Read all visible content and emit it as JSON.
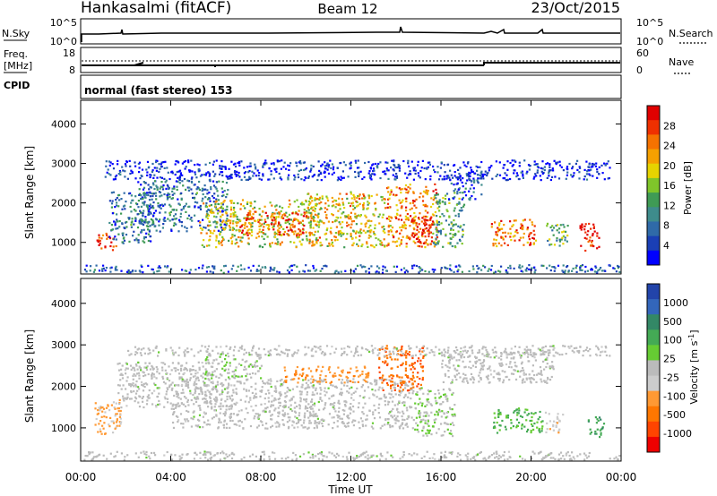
{
  "header": {
    "station": "Hankasalmi (fitACF)",
    "beam": "Beam 12",
    "date": "23/Oct/2015"
  },
  "noise_panel": {
    "left_label": "N.Sky",
    "right_label": "N.Search",
    "left_ticks": [
      "10^5",
      "10^0"
    ],
    "right_ticks": [
      "10^5",
      "10^0"
    ]
  },
  "freq_panel": {
    "left_label_1": "Freq.",
    "left_label_2": "[MHz]",
    "right_label": "Nave",
    "left_ticks": [
      "18",
      "8"
    ],
    "right_ticks": [
      "60",
      "0"
    ]
  },
  "cpid": {
    "label": "CPID",
    "text": "normal (fast stereo) 153"
  },
  "chart_data": [
    {
      "type": "heatmap",
      "title": "",
      "ylabel": "Slant Range [km]",
      "xlabel": "",
      "xlim": [
        0,
        24
      ],
      "ylim": [
        200,
        4600
      ],
      "y_ticks": [
        "1000",
        "2000",
        "3000",
        "4000"
      ],
      "colorbar": {
        "label": "Power [dB]",
        "ticks": [
          "4",
          "8",
          "12",
          "16",
          "20",
          "24",
          "28"
        ],
        "colors": [
          "#0000ff",
          "#1a3fb5",
          "#2f6aa8",
          "#3e8c8c",
          "#3f9b55",
          "#7fc52a",
          "#e6d300",
          "#f5a000",
          "#f57200",
          "#ef3000",
          "#e00000"
        ]
      },
      "echo_regions": [
        {
          "t0": 0.7,
          "t1": 1.6,
          "r0": 800,
          "r1": 1250,
          "level": 26
        },
        {
          "t0": 1.2,
          "t1": 3.2,
          "r0": 1000,
          "r1": 2300,
          "level": 10
        },
        {
          "t0": 2.5,
          "t1": 6.5,
          "r0": 1300,
          "r1": 2600,
          "level": 10
        },
        {
          "t0": 5.2,
          "t1": 10.5,
          "r0": 900,
          "r1": 2100,
          "level": 18
        },
        {
          "t0": 7.0,
          "t1": 10.0,
          "r0": 1200,
          "r1": 1800,
          "level": 24
        },
        {
          "t0": 10.0,
          "t1": 13.5,
          "r0": 900,
          "r1": 2300,
          "level": 19
        },
        {
          "t0": 13.5,
          "t1": 15.8,
          "r0": 900,
          "r1": 2500,
          "level": 22
        },
        {
          "t0": 14.6,
          "t1": 15.6,
          "r0": 1000,
          "r1": 1700,
          "level": 28
        },
        {
          "t0": 15.6,
          "t1": 17.0,
          "r0": 900,
          "r1": 2300,
          "level": 13
        },
        {
          "t0": 16.3,
          "t1": 17.8,
          "r0": 2100,
          "r1": 2800,
          "level": 8
        },
        {
          "t0": 18.2,
          "t1": 20.2,
          "r0": 900,
          "r1": 1600,
          "level": 22
        },
        {
          "t0": 20.6,
          "t1": 21.6,
          "r0": 900,
          "r1": 1500,
          "level": 14
        },
        {
          "t0": 22.1,
          "t1": 23.0,
          "r0": 800,
          "r1": 1500,
          "level": 27
        },
        {
          "t0": 1.0,
          "t1": 23.5,
          "r0": 2600,
          "r1": 3100,
          "level": 6
        },
        {
          "t0": 0.1,
          "t1": 23.9,
          "r0": 250,
          "r1": 450,
          "level": 9
        }
      ]
    },
    {
      "type": "heatmap",
      "title": "",
      "ylabel": "Slant Range [km]",
      "xlabel": "Time UT",
      "xlim": [
        0,
        24
      ],
      "ylim": [
        200,
        4600
      ],
      "y_ticks": [
        "1000",
        "2000",
        "3000",
        "4000"
      ],
      "x_ticks": [
        "00:00",
        "04:00",
        "08:00",
        "12:00",
        "16:00",
        "20:00",
        "00:00"
      ],
      "colorbar": {
        "label": "Velocity [m s",
        "label_sup": "-1",
        "label_end": "]",
        "ticks": [
          "1000",
          "500",
          "100",
          "25",
          "-25",
          "-100",
          "-500",
          "-1000"
        ],
        "colors": [
          "#2244aa",
          "#3366bb",
          "#338866",
          "#44aa55",
          "#66cc33",
          "#bbbbbb",
          "#cccccc",
          "#ff9933",
          "#ff7700",
          "#ff4400",
          "#ee0000"
        ]
      },
      "echo_regions": [
        {
          "t0": 0.6,
          "t1": 1.8,
          "r0": 800,
          "r1": 1700,
          "level": -300
        },
        {
          "t0": 1.6,
          "t1": 6.0,
          "r0": 1500,
          "r1": 2600,
          "level": 0
        },
        {
          "t0": 4.0,
          "t1": 14.8,
          "r0": 1000,
          "r1": 2200,
          "level": 0
        },
        {
          "t0": 5.5,
          "t1": 8.0,
          "r0": 2200,
          "r1": 2800,
          "level": 60
        },
        {
          "t0": 9.0,
          "t1": 12.8,
          "r0": 2100,
          "r1": 2500,
          "level": -400
        },
        {
          "t0": 13.2,
          "t1": 15.2,
          "r0": 1900,
          "r1": 3000,
          "level": -600
        },
        {
          "t0": 14.8,
          "t1": 16.6,
          "r0": 800,
          "r1": 2000,
          "level": 70
        },
        {
          "t0": 16.0,
          "t1": 21.0,
          "r0": 2100,
          "r1": 2900,
          "level": 0
        },
        {
          "t0": 18.3,
          "t1": 20.5,
          "r0": 900,
          "r1": 1500,
          "level": 300
        },
        {
          "t0": 20.6,
          "t1": 21.4,
          "r0": 900,
          "r1": 1400,
          "level": -200
        },
        {
          "t0": 22.5,
          "t1": 23.2,
          "r0": 800,
          "r1": 1300,
          "level": 400
        },
        {
          "t0": 0.1,
          "t1": 23.9,
          "r0": 250,
          "r1": 450,
          "level": 0
        },
        {
          "t0": 2.0,
          "t1": 23.5,
          "r0": 2750,
          "r1": 3000,
          "level": 0
        }
      ]
    }
  ]
}
